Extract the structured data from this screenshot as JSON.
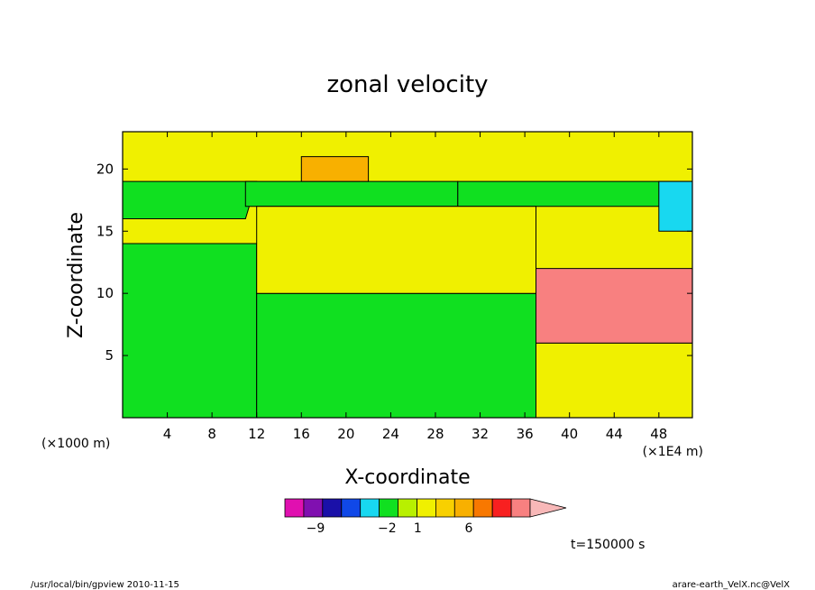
{
  "chart_data": {
    "type": "heatmap",
    "subtype": "filled-contour",
    "title": "zonal velocity",
    "xlabel": "X-coordinate",
    "ylabel": "Z-coordinate",
    "x_scale_note": "(×1000 m)",
    "x_unit_note": "(×1E4 m)",
    "xlim": [
      0,
      51
    ],
    "ylim": [
      0,
      23
    ],
    "xticks": [
      4,
      8,
      12,
      16,
      20,
      24,
      28,
      32,
      36,
      40,
      44,
      48
    ],
    "yticks": [
      5,
      10,
      15,
      20
    ],
    "grid": false,
    "time_label": "t=150000 s",
    "footer_left": "/usr/local/bin/gpview  2010-11-15",
    "footer_right": "arare-earth_VelX.nc@VelX",
    "colorbar": {
      "levels": [
        {
          "color": "#e010b0"
        },
        {
          "color": "#8010b0"
        },
        {
          "color": "#1a10a8"
        },
        {
          "color": "#1048e8"
        },
        {
          "color": "#18d8f0"
        },
        {
          "color": "#10e020"
        },
        {
          "color": "#b8f000"
        },
        {
          "color": "#f0f000"
        },
        {
          "color": "#f8d000"
        },
        {
          "color": "#f8b000"
        },
        {
          "color": "#f87800"
        },
        {
          "color": "#f82020"
        },
        {
          "color": "#f88080"
        },
        {
          "color": "#f8b8b8"
        }
      ],
      "tick_labels": [
        {
          "label": "−9",
          "value": -9
        },
        {
          "label": "−2",
          "value": -2
        },
        {
          "label": "1",
          "value": 1
        },
        {
          "label": "6",
          "value": 6
        }
      ]
    },
    "regions": [
      {
        "color": "#10e020",
        "value_class": "-1 to 0",
        "polygon": [
          [
            0,
            0
          ],
          [
            12,
            0
          ],
          [
            12,
            14
          ],
          [
            0,
            14
          ]
        ]
      },
      {
        "color": "#10e020",
        "value_class": "-1 to 0",
        "polygon": [
          [
            12,
            0
          ],
          [
            37,
            0
          ],
          [
            37,
            10
          ],
          [
            12,
            10
          ]
        ]
      },
      {
        "color": "#10e020",
        "value_class": "-1 to 0",
        "polygon": [
          [
            0,
            16
          ],
          [
            11,
            16
          ],
          [
            12,
            19
          ],
          [
            0,
            19
          ]
        ]
      },
      {
        "color": "#10e020",
        "value_class": "-1 to 0",
        "polygon": [
          [
            11,
            17
          ],
          [
            30,
            17
          ],
          [
            30,
            19
          ],
          [
            11,
            19
          ]
        ]
      },
      {
        "color": "#10e020",
        "value_class": "-1 to 0",
        "polygon": [
          [
            30,
            17
          ],
          [
            51,
            17
          ],
          [
            51,
            19
          ],
          [
            30,
            19
          ]
        ]
      },
      {
        "color": "#f0f000",
        "value_class": "0 to 1",
        "polygon": [
          [
            12,
            10
          ],
          [
            37,
            10
          ],
          [
            37,
            17
          ],
          [
            12,
            17
          ]
        ]
      },
      {
        "color": "#f0f000",
        "value_class": "0 to 1",
        "polygon": [
          [
            37,
            0
          ],
          [
            51,
            0
          ],
          [
            51,
            6
          ],
          [
            37,
            6
          ]
        ]
      },
      {
        "color": "#f88080",
        "value_class": "5 to 6",
        "polygon": [
          [
            37,
            6
          ],
          [
            51,
            6
          ],
          [
            51,
            12
          ],
          [
            37,
            12
          ]
        ]
      },
      {
        "color": "#f8b000",
        "value_class": "3 to 4",
        "polygon": [
          [
            16,
            19
          ],
          [
            22,
            19
          ],
          [
            22,
            21
          ],
          [
            16,
            21
          ]
        ]
      },
      {
        "color": "#18d8f0",
        "value_class": "-2 to -1",
        "polygon": [
          [
            48,
            15
          ],
          [
            51,
            15
          ],
          [
            51,
            19
          ],
          [
            48,
            19
          ]
        ]
      }
    ]
  }
}
